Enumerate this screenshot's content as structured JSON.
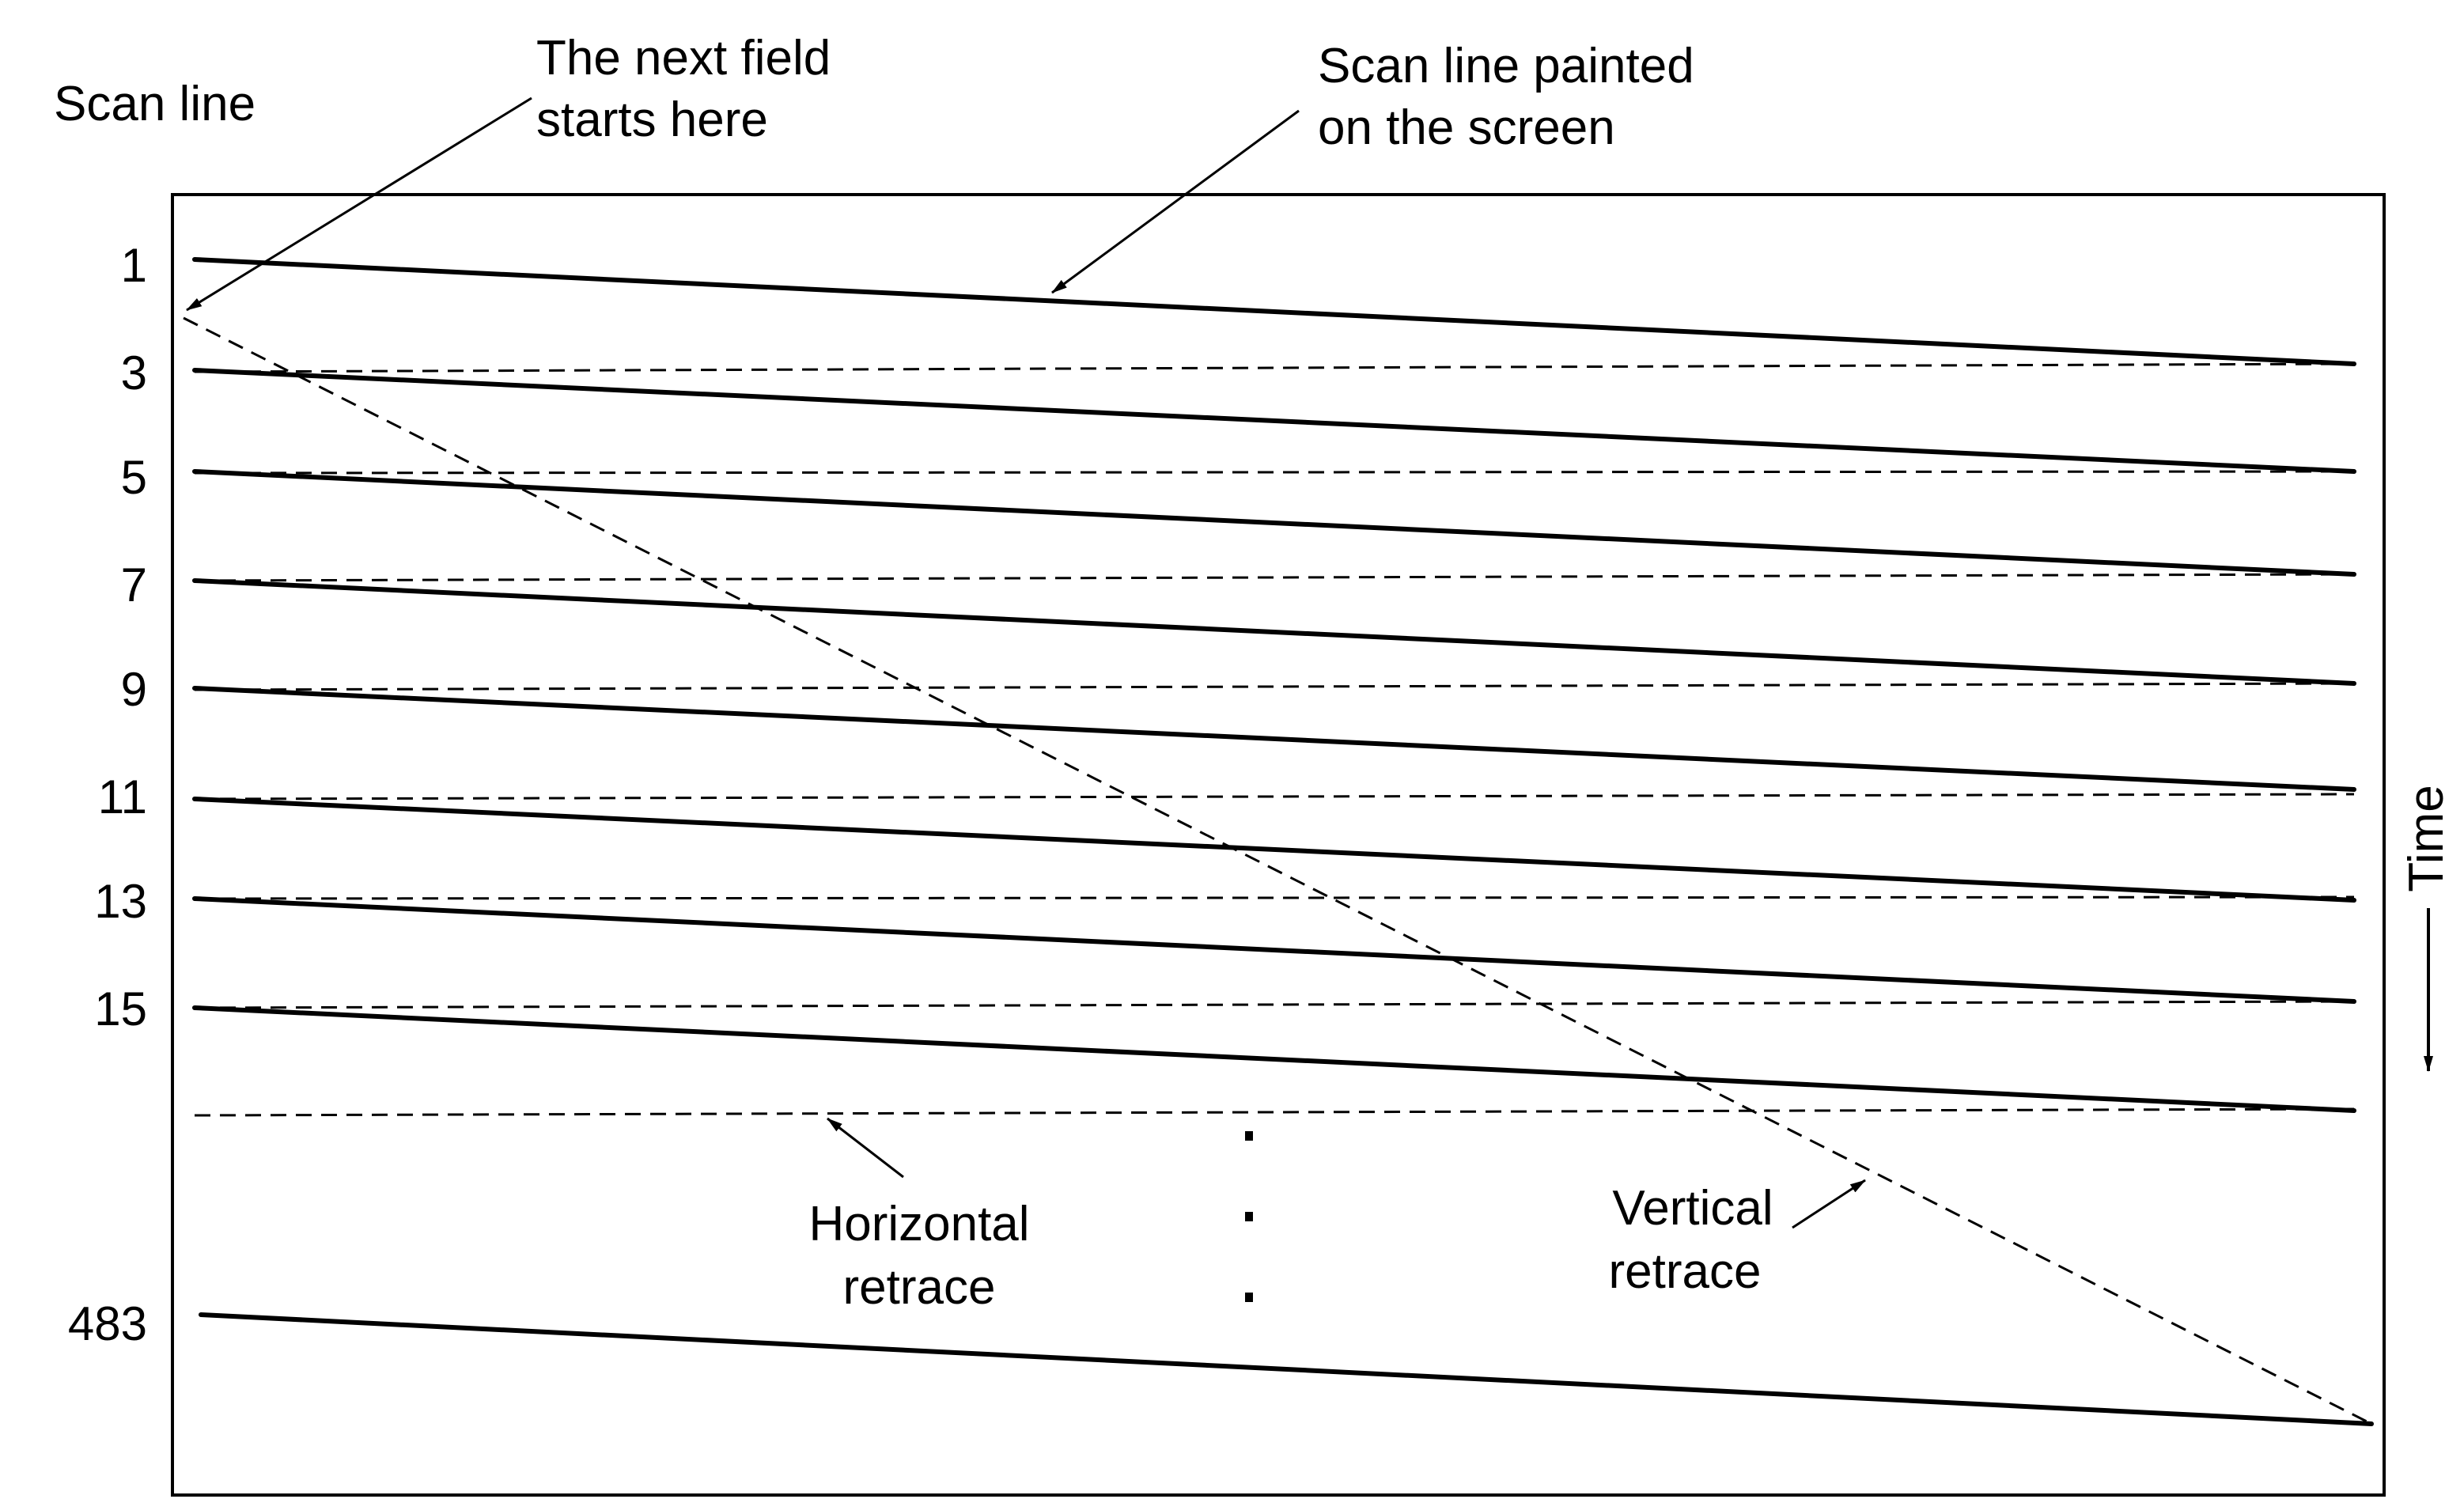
{
  "diagram": {
    "title": "Scan line",
    "row_labels": [
      "1",
      "3",
      "5",
      "7",
      "9",
      "11",
      "13",
      "15"
    ],
    "last_label": "483",
    "annotations": {
      "next_field": [
        "The next field",
        "starts here"
      ],
      "painted": [
        "Scan line painted",
        "on the screen"
      ],
      "horizontal": [
        "Horizontal",
        "retrace"
      ],
      "vertical": [
        "Vertical",
        "retrace"
      ],
      "time": "Time"
    },
    "colors": {
      "stroke": "#000000",
      "background": "#ffffff"
    }
  }
}
